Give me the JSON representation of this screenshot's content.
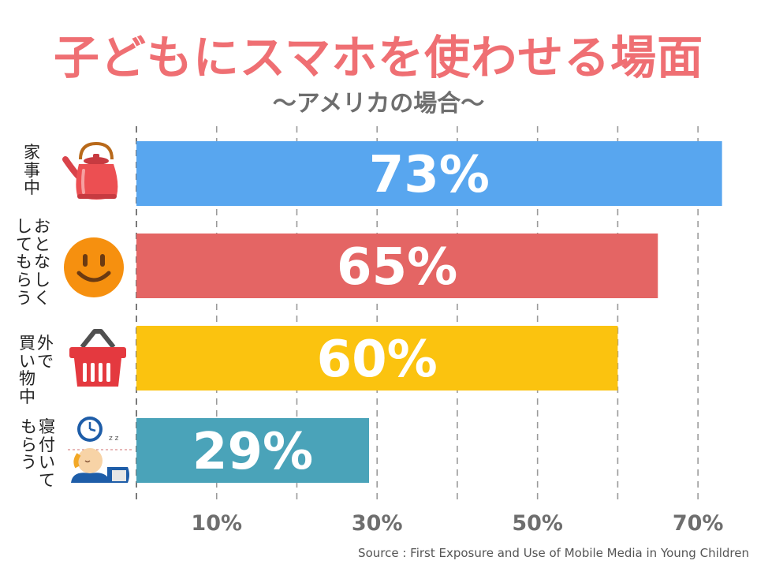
{
  "title": "子どもにスマホを使わせる場面",
  "subtitle": "〜アメリカの場合〜",
  "source": "Source : First Exposure and Use of Mobile Media in Young Children",
  "chart_data": {
    "type": "bar",
    "orientation": "horizontal",
    "categories": [
      "家事中",
      "おとなしくしてもらう",
      "買い物中・外で",
      "寝付いてもらう"
    ],
    "category_lines": [
      [
        "家事中"
      ],
      [
        "おとなしく",
        "してもらう"
      ],
      [
        "外で",
        "買い物中"
      ],
      [
        "寝付いて",
        "もらう"
      ]
    ],
    "values": [
      73,
      65,
      60,
      29
    ],
    "value_labels": [
      "73%",
      "65%",
      "60%",
      "29%"
    ],
    "colors": [
      "#58a6ef",
      "#e46564",
      "#fbc30f",
      "#4aa3b9"
    ],
    "icons": [
      "kettle-icon",
      "smiley-face-icon",
      "shopping-basket-icon",
      "sleeping-child-clock-icon"
    ],
    "xlim": [
      0,
      75
    ],
    "xticks": [
      10,
      30,
      50,
      70
    ],
    "xtick_labels": [
      "10%",
      "30%",
      "50%",
      "70%"
    ],
    "gridlines": [
      0,
      10,
      20,
      30,
      40,
      50,
      60,
      70
    ],
    "grid": "dashed-vertical",
    "legend": "none"
  }
}
